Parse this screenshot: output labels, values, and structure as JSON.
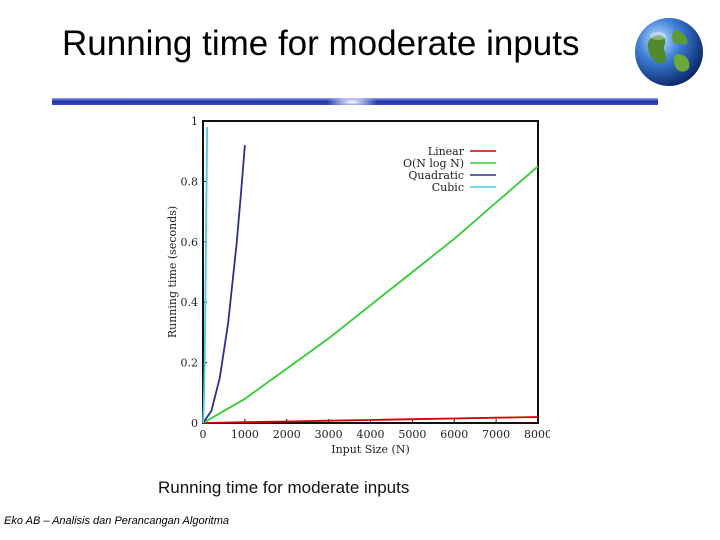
{
  "slide": {
    "title": "Running time for moderate inputs",
    "caption": "Running time for moderate inputs",
    "footer": "Eko AB – Analisis dan Perancangan Algoritma"
  },
  "colors": {
    "linear": "#d00000",
    "nlogn": "#33cc33",
    "quadratic": "#2b2f8f",
    "cubic": "#4fc8e8",
    "divider": "#1c2f9e"
  },
  "icons": {
    "logo": "globe-icon"
  },
  "chart_data": {
    "type": "line",
    "title": "",
    "xlabel": "Input Size (N)",
    "ylabel": "Running time (seconds)",
    "xlim": [
      0,
      8000
    ],
    "ylim": [
      0,
      1
    ],
    "xticks": [
      "0",
      "1000",
      "2000",
      "3000",
      "4000",
      "5000",
      "6000",
      "7000",
      "8000"
    ],
    "yticks": [
      "0",
      "0.2",
      "0.4",
      "0.6",
      "0.8",
      "1"
    ],
    "grid": false,
    "legend_position": "top-right",
    "series": [
      {
        "name": "Linear",
        "color": "#d00000",
        "x": [
          0,
          1000,
          2000,
          3000,
          4000,
          5000,
          6000,
          7000,
          8000
        ],
        "y": [
          0,
          0.0025,
          0.005,
          0.0075,
          0.01,
          0.0125,
          0.015,
          0.0175,
          0.02
        ]
      },
      {
        "name": "O(N log N)",
        "color": "#33cc33",
        "x": [
          0,
          1000,
          2000,
          3000,
          4000,
          5000,
          6000,
          7000,
          8000
        ],
        "y": [
          0,
          0.08,
          0.18,
          0.28,
          0.39,
          0.5,
          0.61,
          0.73,
          0.85
        ]
      },
      {
        "name": "Quadratic",
        "color": "#2b2f8f",
        "x": [
          0,
          200,
          400,
          600,
          800,
          900,
          1000
        ],
        "y": [
          0,
          0.04,
          0.15,
          0.33,
          0.59,
          0.75,
          0.92
        ]
      },
      {
        "name": "Cubic",
        "color": "#4fc8e8",
        "x": [
          0,
          20,
          40,
          60,
          80,
          100
        ],
        "y": [
          0,
          0.06,
          0.2,
          0.45,
          0.75,
          0.98
        ]
      }
    ]
  }
}
